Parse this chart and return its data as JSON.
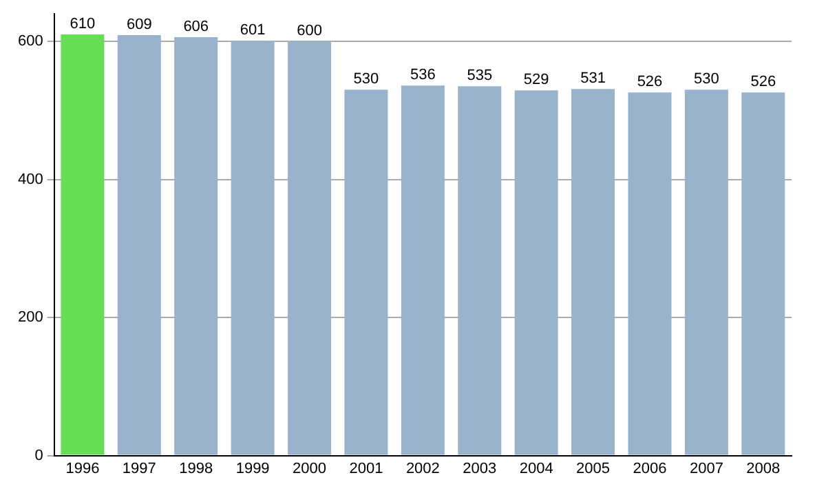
{
  "chart_data": {
    "type": "bar",
    "categories": [
      "1996",
      "1997",
      "1998",
      "1999",
      "2000",
      "2001",
      "2002",
      "2003",
      "2004",
      "2005",
      "2006",
      "2007",
      "2008"
    ],
    "values": [
      610,
      609,
      606,
      601,
      600,
      530,
      536,
      535,
      529,
      531,
      526,
      530,
      526
    ],
    "colors": [
      "#66dd55",
      "#9ab3cc",
      "#9ab3cc",
      "#9ab3cc",
      "#9ab3cc",
      "#9ab3cc",
      "#9ab3cc",
      "#9ab3cc",
      "#9ab3cc",
      "#9ab3cc",
      "#9ab3cc",
      "#9ab3cc",
      "#9ab3cc"
    ],
    "ylim": [
      0,
      640
    ],
    "yticks": [
      0,
      200,
      400,
      600
    ],
    "grid": "y",
    "data_labels": true,
    "legend": false
  }
}
